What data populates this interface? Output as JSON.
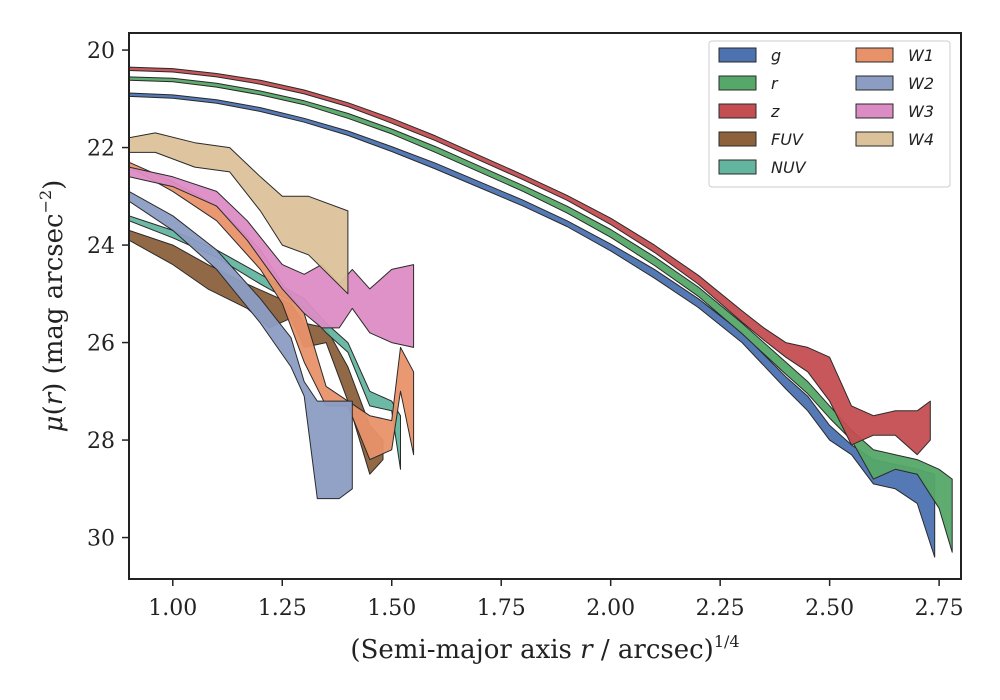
{
  "chart_data": {
    "type": "area",
    "xlabel_parts": [
      "(Semi-major axis ",
      "r",
      " / arcsec)",
      "1/4"
    ],
    "ylabel_parts": [
      "μ(",
      "r",
      ") (mag arcsec",
      "−2",
      ")"
    ],
    "xlim": [
      0.9,
      2.8
    ],
    "ylim": [
      30.85,
      19.65
    ],
    "y_inverted": true,
    "x_ticks": [
      "1.00",
      "1.25",
      "1.50",
      "1.75",
      "2.00",
      "2.25",
      "2.50",
      "2.75"
    ],
    "y_ticks": [
      "20",
      "22",
      "24",
      "26",
      "28",
      "30"
    ],
    "legend_position": "top-right",
    "series": [
      {
        "name": "g",
        "color": "#4c72b0",
        "x": [
          0.9,
          1.0,
          1.1,
          1.2,
          1.3,
          1.4,
          1.5,
          1.6,
          1.7,
          1.8,
          1.9,
          2.0,
          2.1,
          2.2,
          2.3,
          2.4,
          2.45,
          2.5,
          2.55,
          2.6,
          2.65,
          2.7,
          2.74
        ],
        "lo": [
          20.88,
          20.92,
          21.02,
          21.18,
          21.4,
          21.66,
          21.98,
          22.32,
          22.7,
          23.08,
          23.5,
          23.98,
          24.5,
          25.1,
          25.8,
          26.7,
          27.1,
          27.7,
          28.1,
          28.4,
          28.5,
          28.6,
          28.7
        ],
        "hi": [
          20.95,
          20.99,
          21.09,
          21.26,
          21.48,
          21.75,
          22.08,
          22.44,
          22.82,
          23.2,
          23.62,
          24.12,
          24.68,
          25.28,
          26.0,
          26.95,
          27.4,
          28.0,
          28.3,
          28.9,
          29.0,
          29.3,
          30.4
        ]
      },
      {
        "name": "r",
        "color": "#55a868",
        "x": [
          0.9,
          1.0,
          1.1,
          1.2,
          1.3,
          1.4,
          1.5,
          1.6,
          1.7,
          1.8,
          1.9,
          2.0,
          2.1,
          2.2,
          2.3,
          2.4,
          2.45,
          2.5,
          2.55,
          2.6,
          2.65,
          2.7,
          2.75,
          2.78
        ],
        "lo": [
          20.55,
          20.58,
          20.68,
          20.84,
          21.04,
          21.3,
          21.62,
          21.98,
          22.38,
          22.78,
          23.2,
          23.68,
          24.24,
          24.86,
          25.6,
          26.4,
          26.8,
          27.3,
          27.8,
          28.2,
          28.3,
          28.4,
          28.6,
          28.8
        ],
        "hi": [
          20.62,
          20.65,
          20.76,
          20.92,
          21.12,
          21.4,
          21.72,
          22.1,
          22.5,
          22.9,
          23.34,
          23.84,
          24.42,
          25.05,
          25.82,
          26.65,
          27.05,
          27.55,
          28.0,
          28.8,
          28.6,
          28.7,
          29.4,
          30.3
        ]
      },
      {
        "name": "z",
        "color": "#c44e52",
        "x": [
          0.9,
          1.0,
          1.1,
          1.2,
          1.3,
          1.4,
          1.5,
          1.6,
          1.7,
          1.8,
          1.9,
          2.0,
          2.1,
          2.2,
          2.3,
          2.35,
          2.4,
          2.45,
          2.5,
          2.55,
          2.6,
          2.65,
          2.7,
          2.73
        ],
        "lo": [
          20.35,
          20.38,
          20.48,
          20.62,
          20.82,
          21.08,
          21.4,
          21.76,
          22.16,
          22.56,
          22.98,
          23.45,
          24.0,
          24.62,
          25.35,
          25.7,
          26.0,
          26.1,
          26.3,
          27.3,
          27.5,
          27.4,
          27.4,
          27.2
        ],
        "hi": [
          20.42,
          20.45,
          20.55,
          20.7,
          20.9,
          21.16,
          21.5,
          21.86,
          22.26,
          22.66,
          23.08,
          23.58,
          24.15,
          24.8,
          25.58,
          25.95,
          26.3,
          26.6,
          27.2,
          28.1,
          27.9,
          27.9,
          28.3,
          28.0
        ]
      },
      {
        "name": "FUV",
        "color": "#8c613c",
        "x": [
          0.9,
          1.0,
          1.08,
          1.17,
          1.22,
          1.27,
          1.3,
          1.35,
          1.4,
          1.45,
          1.48
        ],
        "lo": [
          23.7,
          24.0,
          24.4,
          24.8,
          25.0,
          25.2,
          25.6,
          25.7,
          26.5,
          27.7,
          28.0
        ],
        "hi": [
          23.9,
          24.4,
          24.9,
          25.3,
          25.7,
          25.5,
          26.1,
          26.0,
          27.2,
          28.7,
          28.4
        ]
      },
      {
        "name": "NUV",
        "color": "#64b5a0",
        "x": [
          0.9,
          1.0,
          1.1,
          1.2,
          1.3,
          1.35,
          1.4,
          1.45,
          1.5,
          1.52
        ],
        "lo": [
          23.4,
          23.7,
          24.1,
          24.6,
          25.1,
          25.6,
          26.0,
          27.0,
          27.2,
          27.5
        ],
        "hi": [
          23.5,
          23.85,
          24.25,
          24.8,
          25.3,
          25.8,
          26.2,
          27.3,
          27.4,
          28.6
        ]
      },
      {
        "name": "W1",
        "color": "#e8926a",
        "x": [
          0.9,
          1.0,
          1.1,
          1.2,
          1.25,
          1.3,
          1.35,
          1.4,
          1.45,
          1.5,
          1.52,
          1.55
        ],
        "lo": [
          22.3,
          22.7,
          23.2,
          24.1,
          24.8,
          25.4,
          26.9,
          27.2,
          27.5,
          27.6,
          26.1,
          26.6
        ],
        "hi": [
          22.4,
          22.9,
          23.5,
          24.5,
          25.2,
          26.4,
          27.3,
          27.3,
          28.4,
          28.2,
          27.0,
          28.3
        ]
      },
      {
        "name": "W2",
        "color": "#8c9dc4",
        "x": [
          0.9,
          1.0,
          1.1,
          1.2,
          1.27,
          1.3,
          1.33,
          1.38,
          1.41
        ],
        "lo": [
          22.9,
          23.4,
          24.1,
          25.1,
          25.9,
          26.8,
          27.2,
          27.2,
          27.2
        ],
        "hi": [
          23.1,
          23.7,
          24.5,
          25.6,
          26.5,
          27.1,
          29.2,
          29.2,
          29.0
        ]
      },
      {
        "name": "W3",
        "color": "#dc8cc4",
        "x": [
          0.9,
          1.0,
          1.1,
          1.17,
          1.25,
          1.3,
          1.34,
          1.38,
          1.41,
          1.45,
          1.5,
          1.55
        ],
        "lo": [
          22.4,
          22.6,
          22.9,
          23.5,
          24.4,
          24.6,
          24.4,
          24.8,
          24.5,
          24.9,
          24.5,
          24.4
        ],
        "hi": [
          22.6,
          22.8,
          23.2,
          23.9,
          24.9,
          25.4,
          25.7,
          25.7,
          25.3,
          25.8,
          26.0,
          26.1
        ]
      },
      {
        "name": "W4",
        "color": "#dcc29a",
        "x": [
          0.9,
          0.96,
          1.05,
          1.13,
          1.2,
          1.25,
          1.31,
          1.4
        ],
        "lo": [
          21.8,
          21.7,
          21.9,
          22.0,
          22.6,
          23.0,
          23.0,
          23.3
        ],
        "hi": [
          22.1,
          22.1,
          22.4,
          22.5,
          23.3,
          24.0,
          24.2,
          25.0
        ]
      }
    ]
  }
}
